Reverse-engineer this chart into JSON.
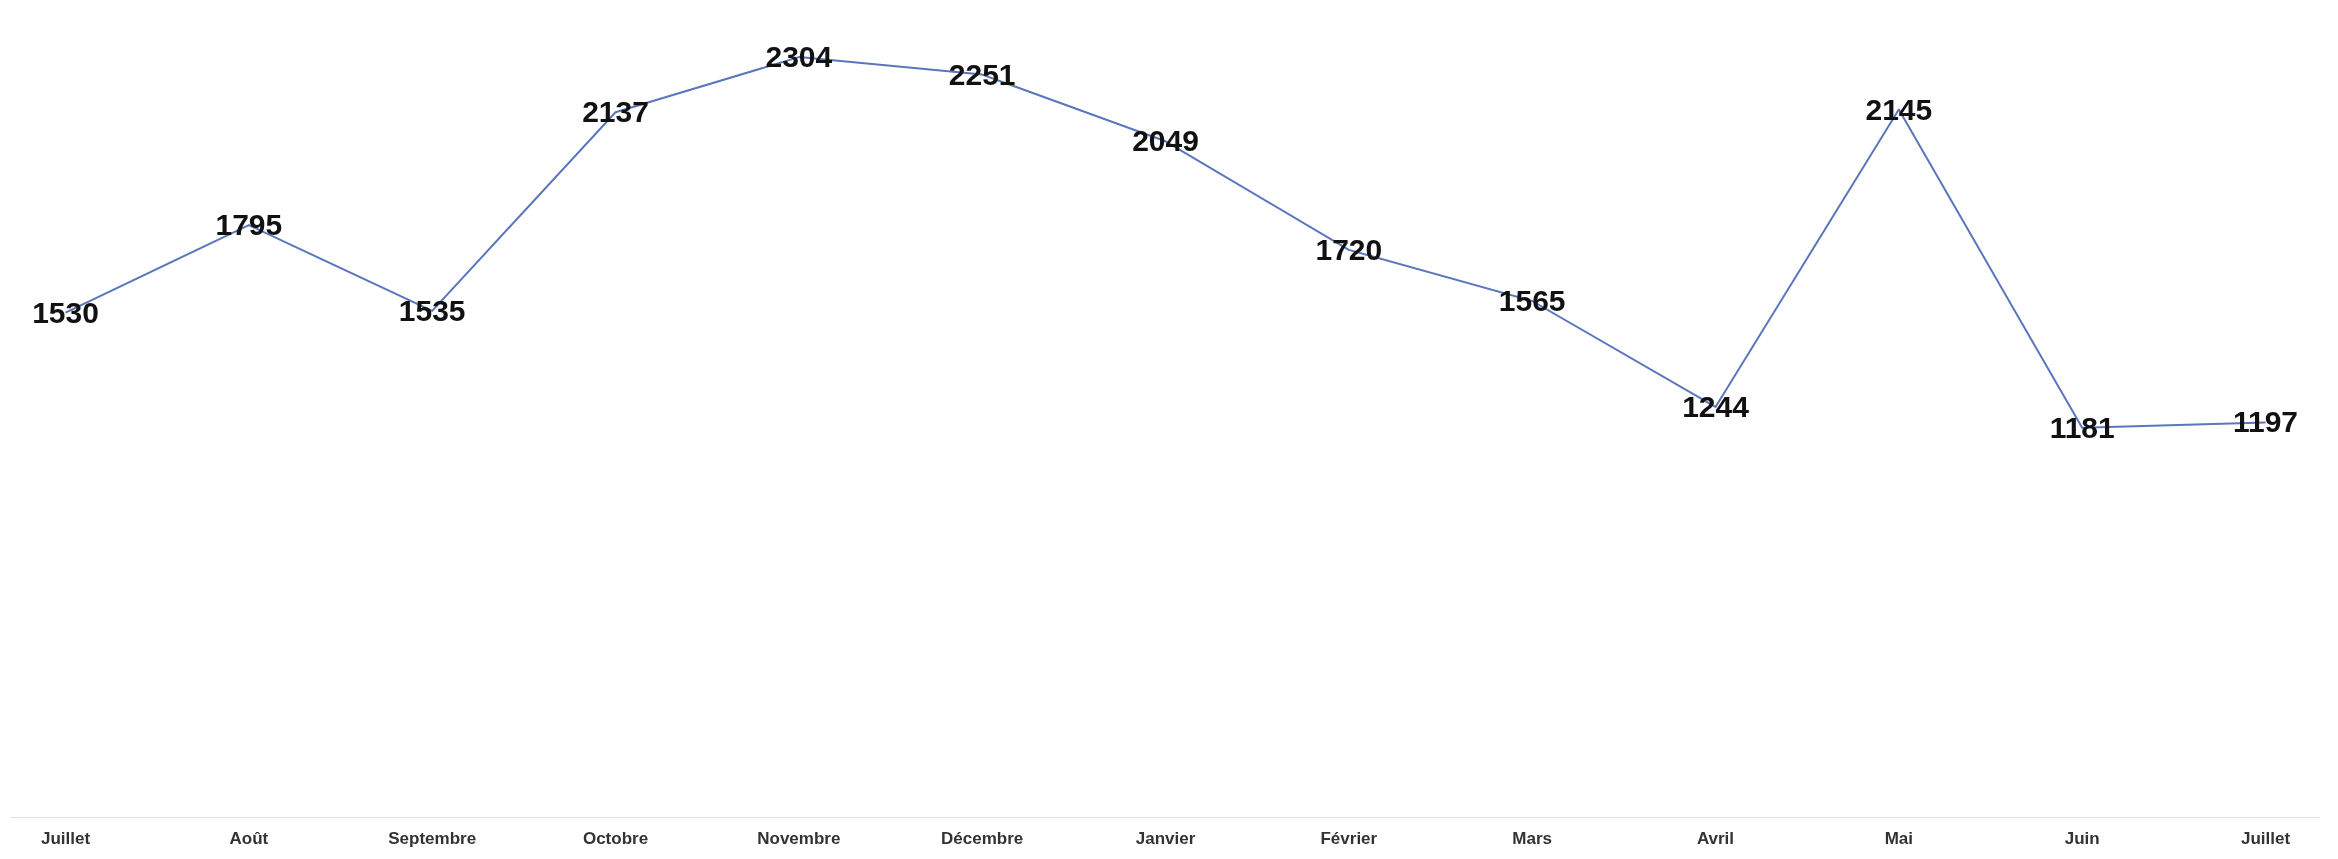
{
  "chart_data": {
    "type": "line",
    "categories": [
      "Juillet",
      "Août",
      "Septembre",
      "Octobre",
      "Novembre",
      "Décembre",
      "Janvier",
      "Février",
      "Mars",
      "Avril",
      "Mai",
      "Juin",
      "Juillet"
    ],
    "series": [
      {
        "color": "#5b76bd",
        "values": [
          1530,
          1795,
          1535,
          2137,
          2304,
          2251,
          2049,
          1720,
          1565,
          1244,
          2145,
          1181,
          1197
        ]
      }
    ],
    "tick_labels": "x",
    "data_labels": true,
    "grid": false,
    "marker": "none",
    "line_style": "solid"
  }
}
